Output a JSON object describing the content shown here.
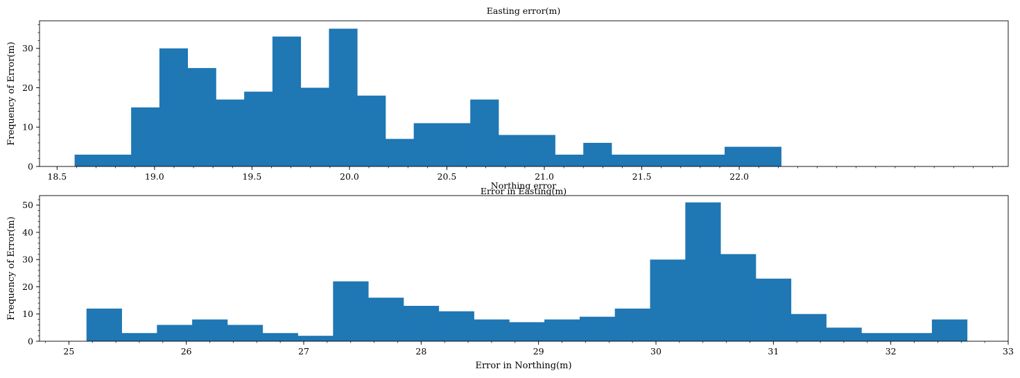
{
  "chart_data": [
    {
      "type": "bar",
      "title": "Easting error(m)",
      "xlabel": "Error in Easting(m)",
      "ylabel": "Frequency of Error(m)",
      "xlim": [
        18.41,
        23.38
      ],
      "ylim": [
        0,
        37
      ],
      "xticks": [
        "18.5",
        "19.0",
        "19.5",
        "20.0",
        "20.5",
        "21.0",
        "21.5",
        "22.0"
      ],
      "yticks": [
        "0",
        "10",
        "20",
        "30"
      ],
      "color": "#1f77b4",
      "bin_edges": [
        18.59,
        18.735,
        18.88,
        19.025,
        19.17,
        19.315,
        19.46,
        19.605,
        19.75,
        19.895,
        20.04,
        20.185,
        20.33,
        20.475,
        20.62,
        20.765,
        20.91,
        21.055,
        21.2,
        21.345,
        21.49,
        21.635,
        21.78,
        21.925,
        22.07,
        22.215
      ],
      "values": [
        3,
        3,
        15,
        30,
        25,
        17,
        19,
        33,
        20,
        35,
        18,
        7,
        11,
        11,
        17,
        8,
        8,
        3,
        6,
        3,
        3,
        3,
        3,
        5,
        5
      ]
    },
    {
      "type": "bar",
      "title": "Northing error",
      "xlabel": "Error in Northing(m)",
      "ylabel": "Frequency of Error(m)",
      "xlim": [
        24.75,
        33.0
      ],
      "ylim": [
        0,
        53.5
      ],
      "xticks": [
        "25",
        "26",
        "27",
        "28",
        "29",
        "30",
        "31",
        "32",
        "33"
      ],
      "yticks": [
        "0",
        "10",
        "20",
        "30",
        "40",
        "50"
      ],
      "color": "#1f77b4",
      "bin_edges": [
        25.15,
        25.45,
        25.75,
        26.05,
        26.35,
        26.65,
        26.95,
        27.25,
        27.55,
        27.85,
        28.15,
        28.45,
        28.75,
        29.05,
        29.35,
        29.65,
        29.95,
        30.25,
        30.55,
        30.85,
        31.15,
        31.45,
        31.75,
        32.05,
        32.35,
        32.65
      ],
      "values": [
        12,
        3,
        6,
        8,
        6,
        3,
        2,
        22,
        16,
        13,
        11,
        8,
        7,
        8,
        9,
        12,
        30,
        51,
        32,
        23,
        10,
        5,
        3,
        3,
        8
      ]
    }
  ]
}
